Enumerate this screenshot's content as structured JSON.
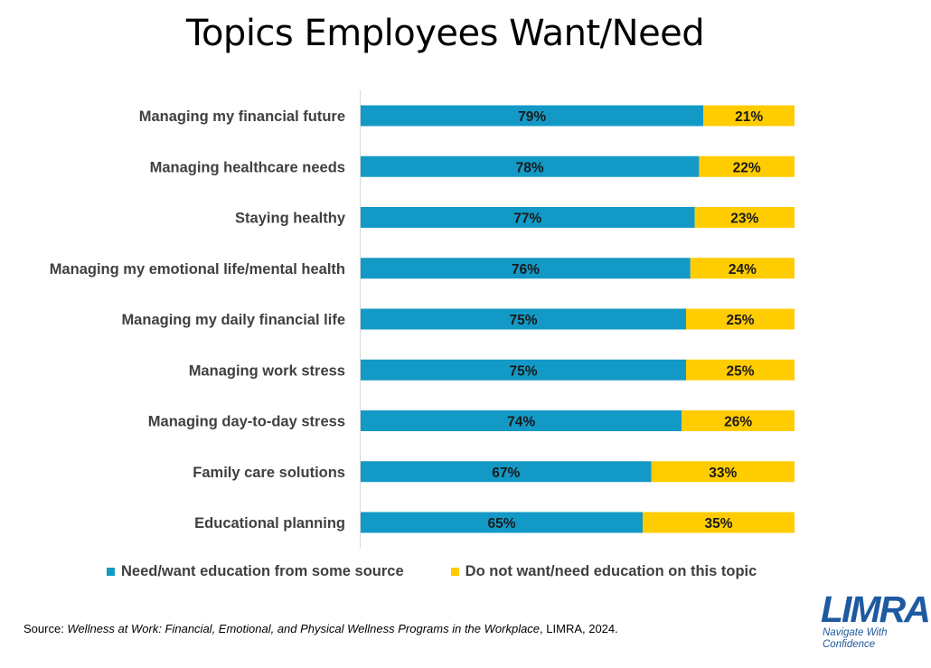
{
  "title": "Topics Employees Want/Need",
  "chart_data": {
    "type": "bar",
    "orientation": "horizontal",
    "stacked": true,
    "percent_stacked": true,
    "categories": [
      "Managing my financial future",
      "Managing healthcare needs",
      "Staying healthy",
      "Managing my emotional life/mental health",
      "Managing my daily financial life",
      "Managing work stress",
      "Managing day-to-day stress",
      "Family care solutions",
      "Educational planning"
    ],
    "series": [
      {
        "name": "Need/want education from some source",
        "color": "#1399c6",
        "values": [
          79,
          78,
          77,
          76,
          75,
          75,
          74,
          67,
          65
        ],
        "labels": [
          "79%",
          "78%",
          "77%",
          "76%",
          "75%",
          "75%",
          "74%",
          "67%",
          "65%"
        ]
      },
      {
        "name": "Do not want/need education on this topic",
        "color": "#ffcc00",
        "values": [
          21,
          22,
          23,
          24,
          25,
          25,
          26,
          33,
          35
        ],
        "labels": [
          "21%",
          "22%",
          "23%",
          "24%",
          "25%",
          "25%",
          "26%",
          "33%",
          "35%"
        ]
      }
    ],
    "xlim": [
      0,
      100
    ],
    "grid": false,
    "legend_position": "bottom"
  },
  "source": {
    "prefix": "Source: ",
    "italic": "Wellness at Work: Financial, Emotional, and Physical Wellness Programs in the Workplace",
    "suffix": ", LIMRA, 2024."
  },
  "logo": {
    "word": "LIMRA",
    "tagline_1": "Navigate With",
    "tagline_2": "Confidence"
  }
}
